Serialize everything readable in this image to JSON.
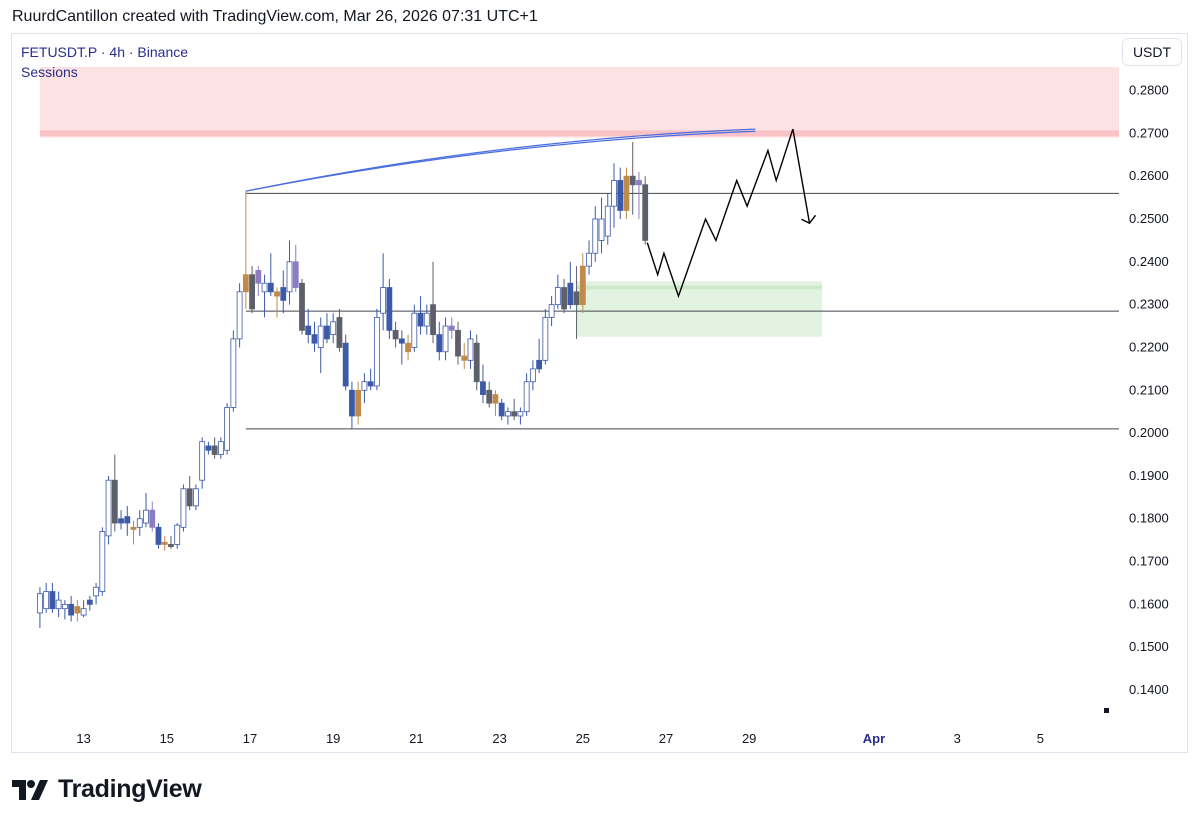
{
  "header": {
    "attribution": "RuurdCantillon created with TradingView.com, Mar 26, 2026 07:31 UTC+1"
  },
  "legend": {
    "symbol_line": "FETUSDT.P · 4h · Binance",
    "indicator": "Sessions"
  },
  "currency_button": {
    "label": "USDT"
  },
  "footer": {
    "brand": "TradingView"
  },
  "colors": {
    "candle_up_border": "#3d5aa8",
    "candle_up_body": "#ffffff",
    "candle_dn": "#3d5aa8",
    "candle_gray": "#5d606b",
    "candle_orange": "#c08a4a",
    "candle_purple": "#8e7cc3",
    "supply_zone": "#fde2e4",
    "supply_line": "#f8c3c6",
    "demand_zone": "#e3f3e1",
    "demand_line": "#cde9ca",
    "fib_line": "#4a6ee0",
    "hline": "#434651"
  },
  "chart_data": {
    "type": "candlestick",
    "title": "FETUSDT.P · 4h · Binance",
    "ylabel": "USDT",
    "ylim": [
      0.133,
      0.2855
    ],
    "y_ticks": [
      "0.2800",
      "0.2700",
      "0.2600",
      "0.2500",
      "0.2400",
      "0.2300",
      "0.2200",
      "0.2100",
      "0.2000",
      "0.1900",
      "0.1800",
      "0.1700",
      "0.1600",
      "0.1500",
      "0.1400"
    ],
    "x_ticks": [
      {
        "label": "13",
        "day": 13
      },
      {
        "label": "15",
        "day": 15
      },
      {
        "label": "17",
        "day": 17
      },
      {
        "label": "19",
        "day": 19
      },
      {
        "label": "21",
        "day": 21
      },
      {
        "label": "23",
        "day": 23
      },
      {
        "label": "25",
        "day": 25
      },
      {
        "label": "27",
        "day": 27
      },
      {
        "label": "29",
        "day": 29
      },
      {
        "label": "Apr",
        "day": 32,
        "bold": true
      },
      {
        "label": "3",
        "day": 34
      },
      {
        "label": "5",
        "day": 36
      }
    ],
    "candles": [
      {
        "d": 11.95,
        "o": 0.158,
        "h": 0.164,
        "l": 0.1545,
        "c": 0.1625,
        "k": "up"
      },
      {
        "d": 12.1,
        "o": 0.163,
        "h": 0.165,
        "l": 0.158,
        "c": 0.159,
        "k": "up"
      },
      {
        "d": 12.25,
        "o": 0.163,
        "h": 0.165,
        "l": 0.158,
        "c": 0.159,
        "k": "dn"
      },
      {
        "d": 12.4,
        "o": 0.161,
        "h": 0.163,
        "l": 0.157,
        "c": 0.159,
        "k": "up"
      },
      {
        "d": 12.55,
        "o": 0.159,
        "h": 0.161,
        "l": 0.1565,
        "c": 0.16,
        "k": "up"
      },
      {
        "d": 12.7,
        "o": 0.16,
        "h": 0.162,
        "l": 0.156,
        "c": 0.1575,
        "k": "dn"
      },
      {
        "d": 12.85,
        "o": 0.158,
        "h": 0.161,
        "l": 0.156,
        "c": 0.1595,
        "k": "o"
      },
      {
        "d": 13.0,
        "o": 0.159,
        "h": 0.161,
        "l": 0.157,
        "c": 0.1575,
        "k": "up"
      },
      {
        "d": 13.15,
        "o": 0.16,
        "h": 0.162,
        "l": 0.1585,
        "c": 0.161,
        "k": "dn"
      },
      {
        "d": 13.3,
        "o": 0.162,
        "h": 0.165,
        "l": 0.16,
        "c": 0.164,
        "k": "up"
      },
      {
        "d": 13.45,
        "o": 0.163,
        "h": 0.178,
        "l": 0.162,
        "c": 0.177,
        "k": "up"
      },
      {
        "d": 13.6,
        "o": 0.176,
        "h": 0.19,
        "l": 0.174,
        "c": 0.189,
        "k": "up"
      },
      {
        "d": 13.75,
        "o": 0.189,
        "h": 0.195,
        "l": 0.177,
        "c": 0.179,
        "k": "g"
      },
      {
        "d": 13.9,
        "o": 0.18,
        "h": 0.182,
        "l": 0.1775,
        "c": 0.179,
        "k": "dn"
      },
      {
        "d": 14.05,
        "o": 0.179,
        "h": 0.183,
        "l": 0.176,
        "c": 0.1805,
        "k": "dn"
      },
      {
        "d": 14.2,
        "o": 0.178,
        "h": 0.1795,
        "l": 0.174,
        "c": 0.1775,
        "k": "o"
      },
      {
        "d": 14.35,
        "o": 0.178,
        "h": 0.182,
        "l": 0.176,
        "c": 0.18,
        "k": "up"
      },
      {
        "d": 14.5,
        "o": 0.179,
        "h": 0.186,
        "l": 0.178,
        "c": 0.182,
        "k": "up"
      },
      {
        "d": 14.65,
        "o": 0.182,
        "h": 0.184,
        "l": 0.177,
        "c": 0.178,
        "k": "p"
      },
      {
        "d": 14.8,
        "o": 0.178,
        "h": 0.179,
        "l": 0.173,
        "c": 0.174,
        "k": "dn"
      },
      {
        "d": 14.95,
        "o": 0.174,
        "h": 0.176,
        "l": 0.1725,
        "c": 0.1745,
        "k": "o"
      },
      {
        "d": 15.1,
        "o": 0.174,
        "h": 0.176,
        "l": 0.173,
        "c": 0.1735,
        "k": "g"
      },
      {
        "d": 15.25,
        "o": 0.174,
        "h": 0.179,
        "l": 0.173,
        "c": 0.1785,
        "k": "up"
      },
      {
        "d": 15.4,
        "o": 0.178,
        "h": 0.188,
        "l": 0.177,
        "c": 0.187,
        "k": "up"
      },
      {
        "d": 15.55,
        "o": 0.187,
        "h": 0.19,
        "l": 0.182,
        "c": 0.183,
        "k": "g"
      },
      {
        "d": 15.7,
        "o": 0.183,
        "h": 0.188,
        "l": 0.182,
        "c": 0.187,
        "k": "up"
      },
      {
        "d": 15.85,
        "o": 0.189,
        "h": 0.199,
        "l": 0.187,
        "c": 0.198,
        "k": "up"
      },
      {
        "d": 16.0,
        "o": 0.196,
        "h": 0.198,
        "l": 0.195,
        "c": 0.197,
        "k": "dn"
      },
      {
        "d": 16.15,
        "o": 0.197,
        "h": 0.199,
        "l": 0.194,
        "c": 0.195,
        "k": "g"
      },
      {
        "d": 16.3,
        "o": 0.195,
        "h": 0.199,
        "l": 0.194,
        "c": 0.198,
        "k": "up"
      },
      {
        "d": 16.45,
        "o": 0.196,
        "h": 0.207,
        "l": 0.195,
        "c": 0.206,
        "k": "up"
      },
      {
        "d": 16.6,
        "o": 0.206,
        "h": 0.224,
        "l": 0.205,
        "c": 0.222,
        "k": "up"
      },
      {
        "d": 16.75,
        "o": 0.222,
        "h": 0.235,
        "l": 0.22,
        "c": 0.233,
        "k": "up"
      },
      {
        "d": 16.9,
        "o": 0.233,
        "h": 0.2565,
        "l": 0.229,
        "c": 0.237,
        "k": "o"
      },
      {
        "d": 17.05,
        "o": 0.237,
        "h": 0.239,
        "l": 0.228,
        "c": 0.229,
        "k": "g"
      },
      {
        "d": 17.2,
        "o": 0.235,
        "h": 0.239,
        "l": 0.232,
        "c": 0.238,
        "k": "p"
      },
      {
        "d": 17.35,
        "o": 0.235,
        "h": 0.237,
        "l": 0.227,
        "c": 0.233,
        "k": "up"
      },
      {
        "d": 17.5,
        "o": 0.233,
        "h": 0.242,
        "l": 0.232,
        "c": 0.235,
        "k": "dn"
      },
      {
        "d": 17.65,
        "o": 0.232,
        "h": 0.234,
        "l": 0.227,
        "c": 0.233,
        "k": "o"
      },
      {
        "d": 17.8,
        "o": 0.234,
        "h": 0.238,
        "l": 0.228,
        "c": 0.231,
        "k": "dn"
      },
      {
        "d": 17.95,
        "o": 0.233,
        "h": 0.245,
        "l": 0.23,
        "c": 0.24,
        "k": "up"
      },
      {
        "d": 18.1,
        "o": 0.24,
        "h": 0.244,
        "l": 0.233,
        "c": 0.234,
        "k": "p"
      },
      {
        "d": 18.25,
        "o": 0.235,
        "h": 0.236,
        "l": 0.223,
        "c": 0.224,
        "k": "g"
      },
      {
        "d": 18.4,
        "o": 0.225,
        "h": 0.229,
        "l": 0.221,
        "c": 0.223,
        "k": "dn"
      },
      {
        "d": 18.55,
        "o": 0.223,
        "h": 0.226,
        "l": 0.219,
        "c": 0.221,
        "k": "dn"
      },
      {
        "d": 18.7,
        "o": 0.22,
        "h": 0.227,
        "l": 0.214,
        "c": 0.225,
        "k": "up"
      },
      {
        "d": 18.85,
        "o": 0.225,
        "h": 0.228,
        "l": 0.221,
        "c": 0.222,
        "k": "dn"
      },
      {
        "d": 19.0,
        "o": 0.223,
        "h": 0.228,
        "l": 0.221,
        "c": 0.226,
        "k": "up"
      },
      {
        "d": 19.15,
        "o": 0.227,
        "h": 0.229,
        "l": 0.219,
        "c": 0.22,
        "k": "g"
      },
      {
        "d": 19.3,
        "o": 0.221,
        "h": 0.223,
        "l": 0.21,
        "c": 0.211,
        "k": "dn"
      },
      {
        "d": 19.45,
        "o": 0.21,
        "h": 0.212,
        "l": 0.201,
        "c": 0.204,
        "k": "dn"
      },
      {
        "d": 19.6,
        "o": 0.204,
        "h": 0.212,
        "l": 0.202,
        "c": 0.21,
        "k": "o"
      },
      {
        "d": 19.75,
        "o": 0.21,
        "h": 0.214,
        "l": 0.207,
        "c": 0.212,
        "k": "up"
      },
      {
        "d": 19.9,
        "o": 0.212,
        "h": 0.215,
        "l": 0.21,
        "c": 0.211,
        "k": "dn"
      },
      {
        "d": 20.05,
        "o": 0.211,
        "h": 0.229,
        "l": 0.21,
        "c": 0.227,
        "k": "up"
      },
      {
        "d": 20.2,
        "o": 0.228,
        "h": 0.242,
        "l": 0.224,
        "c": 0.234,
        "k": "up"
      },
      {
        "d": 20.35,
        "o": 0.234,
        "h": 0.236,
        "l": 0.222,
        "c": 0.224,
        "k": "dn"
      },
      {
        "d": 20.5,
        "o": 0.224,
        "h": 0.226,
        "l": 0.22,
        "c": 0.222,
        "k": "g"
      },
      {
        "d": 20.65,
        "o": 0.222,
        "h": 0.224,
        "l": 0.216,
        "c": 0.221,
        "k": "dn"
      },
      {
        "d": 20.8,
        "o": 0.221,
        "h": 0.223,
        "l": 0.217,
        "c": 0.219,
        "k": "o"
      },
      {
        "d": 20.95,
        "o": 0.22,
        "h": 0.23,
        "l": 0.219,
        "c": 0.228,
        "k": "up"
      },
      {
        "d": 21.1,
        "o": 0.228,
        "h": 0.232,
        "l": 0.223,
        "c": 0.225,
        "k": "dn"
      },
      {
        "d": 21.25,
        "o": 0.225,
        "h": 0.23,
        "l": 0.223,
        "c": 0.228,
        "k": "up"
      },
      {
        "d": 21.4,
        "o": 0.23,
        "h": 0.24,
        "l": 0.221,
        "c": 0.223,
        "k": "g"
      },
      {
        "d": 21.55,
        "o": 0.223,
        "h": 0.226,
        "l": 0.217,
        "c": 0.219,
        "k": "dn"
      },
      {
        "d": 21.7,
        "o": 0.219,
        "h": 0.227,
        "l": 0.217,
        "c": 0.225,
        "k": "up"
      },
      {
        "d": 21.85,
        "o": 0.225,
        "h": 0.227,
        "l": 0.222,
        "c": 0.224,
        "k": "p"
      },
      {
        "d": 22.0,
        "o": 0.224,
        "h": 0.226,
        "l": 0.216,
        "c": 0.218,
        "k": "g"
      },
      {
        "d": 22.15,
        "o": 0.218,
        "h": 0.221,
        "l": 0.215,
        "c": 0.217,
        "k": "o"
      },
      {
        "d": 22.3,
        "o": 0.217,
        "h": 0.224,
        "l": 0.215,
        "c": 0.222,
        "k": "up"
      },
      {
        "d": 22.45,
        "o": 0.221,
        "h": 0.223,
        "l": 0.21,
        "c": 0.212,
        "k": "g"
      },
      {
        "d": 22.6,
        "o": 0.212,
        "h": 0.216,
        "l": 0.207,
        "c": 0.209,
        "k": "dn"
      },
      {
        "d": 22.75,
        "o": 0.21,
        "h": 0.212,
        "l": 0.206,
        "c": 0.207,
        "k": "g"
      },
      {
        "d": 22.9,
        "o": 0.207,
        "h": 0.21,
        "l": 0.204,
        "c": 0.209,
        "k": "o"
      },
      {
        "d": 23.05,
        "o": 0.207,
        "h": 0.208,
        "l": 0.203,
        "c": 0.204,
        "k": "dn"
      },
      {
        "d": 23.2,
        "o": 0.204,
        "h": 0.206,
        "l": 0.202,
        "c": 0.205,
        "k": "up"
      },
      {
        "d": 23.35,
        "o": 0.205,
        "h": 0.208,
        "l": 0.203,
        "c": 0.204,
        "k": "g"
      },
      {
        "d": 23.5,
        "o": 0.204,
        "h": 0.206,
        "l": 0.202,
        "c": 0.205,
        "k": "up"
      },
      {
        "d": 23.65,
        "o": 0.205,
        "h": 0.214,
        "l": 0.204,
        "c": 0.212,
        "k": "up"
      },
      {
        "d": 23.8,
        "o": 0.212,
        "h": 0.217,
        "l": 0.21,
        "c": 0.215,
        "k": "up"
      },
      {
        "d": 23.95,
        "o": 0.215,
        "h": 0.222,
        "l": 0.214,
        "c": 0.217,
        "k": "dn"
      },
      {
        "d": 24.1,
        "o": 0.217,
        "h": 0.229,
        "l": 0.216,
        "c": 0.227,
        "k": "up"
      },
      {
        "d": 24.25,
        "o": 0.227,
        "h": 0.232,
        "l": 0.225,
        "c": 0.23,
        "k": "up"
      },
      {
        "d": 24.4,
        "o": 0.23,
        "h": 0.237,
        "l": 0.229,
        "c": 0.234,
        "k": "up"
      },
      {
        "d": 24.55,
        "o": 0.234,
        "h": 0.236,
        "l": 0.228,
        "c": 0.229,
        "k": "g"
      },
      {
        "d": 24.7,
        "o": 0.23,
        "h": 0.24,
        "l": 0.229,
        "c": 0.235,
        "k": "dn"
      },
      {
        "d": 24.85,
        "o": 0.233,
        "h": 0.239,
        "l": 0.222,
        "c": 0.23,
        "k": "g"
      },
      {
        "d": 25.0,
        "o": 0.23,
        "h": 0.242,
        "l": 0.228,
        "c": 0.239,
        "k": "o"
      },
      {
        "d": 25.15,
        "o": 0.239,
        "h": 0.245,
        "l": 0.237,
        "c": 0.242,
        "k": "up"
      },
      {
        "d": 25.3,
        "o": 0.242,
        "h": 0.253,
        "l": 0.24,
        "c": 0.25,
        "k": "up"
      },
      {
        "d": 25.45,
        "o": 0.25,
        "h": 0.255,
        "l": 0.242,
        "c": 0.245,
        "k": "up"
      },
      {
        "d": 25.6,
        "o": 0.246,
        "h": 0.256,
        "l": 0.244,
        "c": 0.253,
        "k": "up"
      },
      {
        "d": 25.75,
        "o": 0.253,
        "h": 0.263,
        "l": 0.248,
        "c": 0.259,
        "k": "up"
      },
      {
        "d": 25.9,
        "o": 0.259,
        "h": 0.262,
        "l": 0.25,
        "c": 0.252,
        "k": "dn"
      },
      {
        "d": 26.05,
        "o": 0.252,
        "h": 0.262,
        "l": 0.25,
        "c": 0.26,
        "k": "o"
      },
      {
        "d": 26.2,
        "o": 0.26,
        "h": 0.268,
        "l": 0.251,
        "c": 0.258,
        "k": "g"
      },
      {
        "d": 26.35,
        "o": 0.259,
        "h": 0.261,
        "l": 0.25,
        "c": 0.258,
        "k": "p"
      },
      {
        "d": 26.5,
        "o": 0.258,
        "h": 0.26,
        "l": 0.244,
        "c": 0.245,
        "k": "g"
      }
    ],
    "drawings": {
      "supply_zone": {
        "y_top": 0.2855,
        "y_bottom": 0.269,
        "line": 0.27,
        "start_day": 11.95
      },
      "demand_zone": {
        "y_top": 0.2355,
        "y_bottom": 0.2225,
        "line": 0.234,
        "start_day": 24.85,
        "end_day": 30.75
      },
      "hlines": [
        {
          "y": 0.256,
          "start_day": 16.9
        },
        {
          "y": 0.2285,
          "start_day": 16.9
        },
        {
          "y": 0.201,
          "start_day": 16.9
        }
      ],
      "fib_curves": [
        {
          "from_day": 16.9,
          "from_y": 0.2565,
          "to_day": 29.15,
          "to_y": 0.2705
        },
        {
          "from_day": 16.9,
          "from_y": 0.2565,
          "to_day": 29.15,
          "to_y": 0.271
        }
      ],
      "projection_path": [
        {
          "d": 26.55,
          "y": 0.2445
        },
        {
          "d": 26.8,
          "y": 0.237
        },
        {
          "d": 26.95,
          "y": 0.242
        },
        {
          "d": 27.3,
          "y": 0.232
        },
        {
          "d": 27.95,
          "y": 0.25
        },
        {
          "d": 28.2,
          "y": 0.245
        },
        {
          "d": 28.7,
          "y": 0.259
        },
        {
          "d": 28.95,
          "y": 0.253
        },
        {
          "d": 29.45,
          "y": 0.266
        },
        {
          "d": 29.65,
          "y": 0.259
        },
        {
          "d": 30.05,
          "y": 0.271
        },
        {
          "d": 30.45,
          "y": 0.249
        }
      ]
    }
  }
}
